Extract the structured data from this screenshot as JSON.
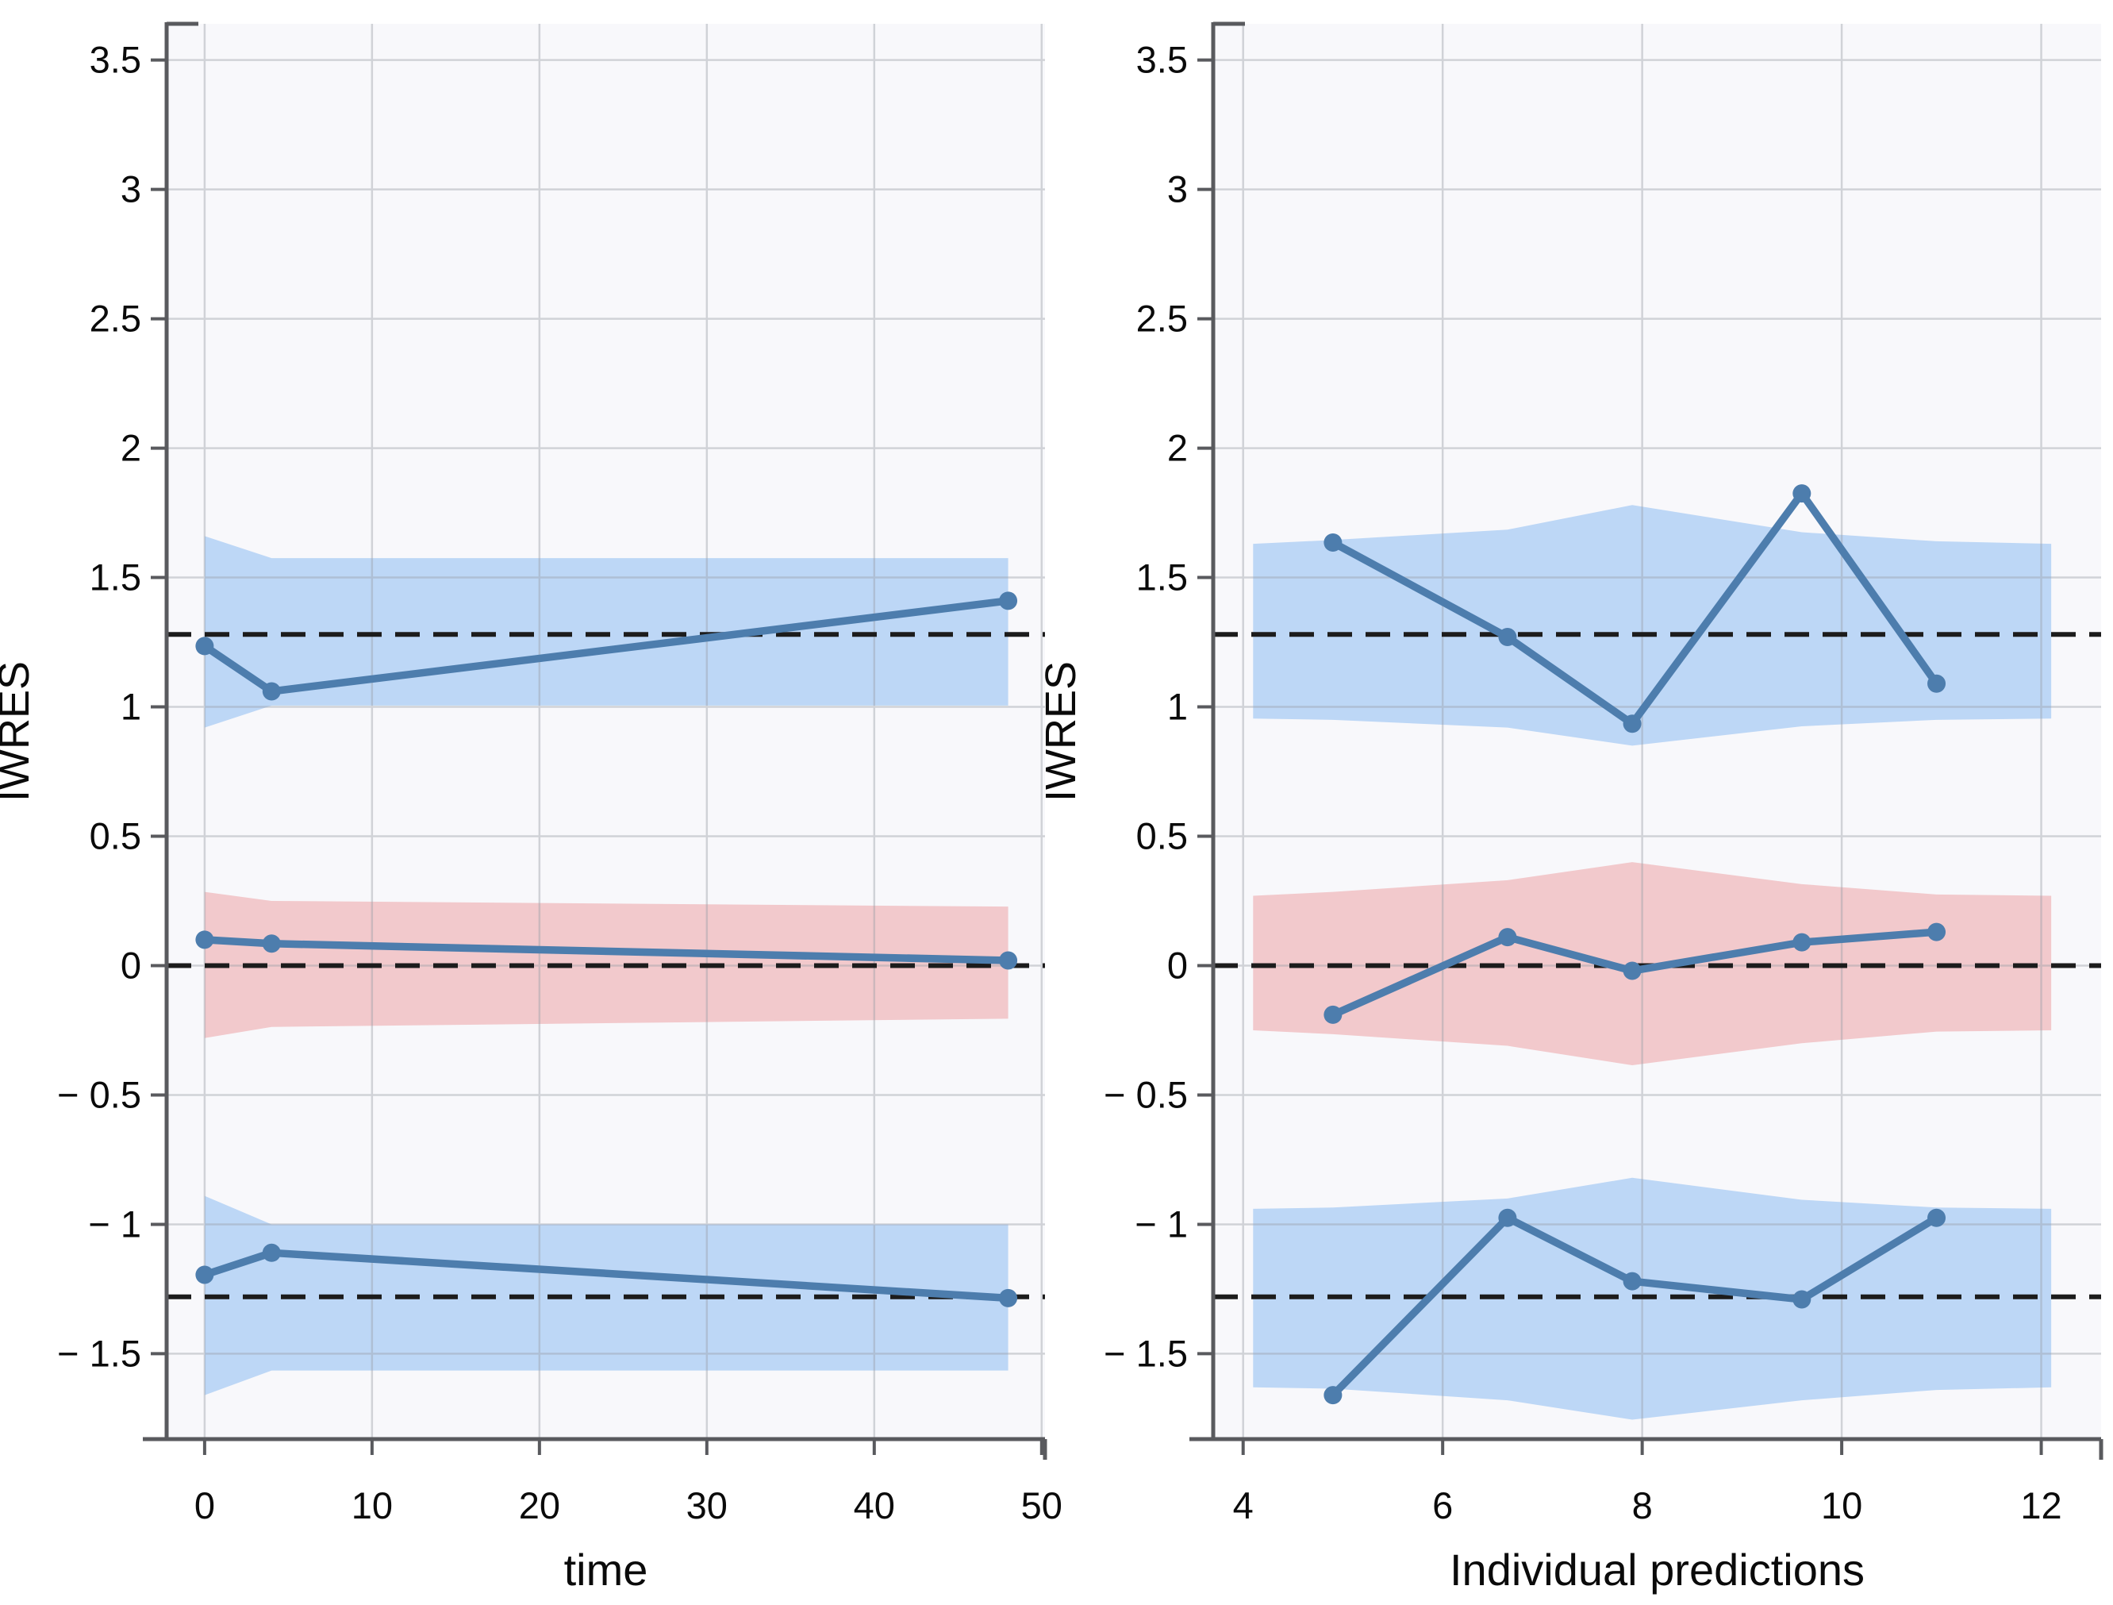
{
  "figure_name": "iwres-residual-scatter-vpc",
  "colors": {
    "band_blue": "#bdd7f6",
    "band_red": "#f2c9cc",
    "line": "#4d7dad",
    "dashed_line": "#1c1c1c",
    "grid": "#9aa0a8",
    "plot_background": "#f8f8fb",
    "axis": "#595a5e",
    "tick_text": "#0a0a0a"
  },
  "chart_data": [
    {
      "type": "line",
      "panel": "time",
      "title": "",
      "xlabel": "time",
      "ylabel": "IWRES",
      "xlim": [
        -2.27,
        50.2
      ],
      "ylim": [
        -1.83,
        3.64
      ],
      "xticks": [
        0,
        10,
        20,
        30,
        40,
        50
      ],
      "yticks": [
        3.5,
        3,
        2.5,
        2,
        1.5,
        1,
        0.5,
        0,
        -0.5,
        -1,
        -1.5
      ],
      "grid": "on",
      "legend": "none",
      "dashed_hlines": [
        1.28,
        0,
        -1.28
      ],
      "bands": [
        {
          "name": "outlier-band-upper",
          "color_key": "band_blue",
          "x": [
            0,
            4,
            48
          ],
          "upper": [
            1.66,
            1.575,
            1.575
          ],
          "lower": [
            0.92,
            1.005,
            1.005
          ]
        },
        {
          "name": "median-band",
          "color_key": "band_red",
          "x": [
            0,
            4,
            48
          ],
          "upper": [
            0.285,
            0.25,
            0.228
          ],
          "lower": [
            -0.28,
            -0.237,
            -0.205
          ]
        },
        {
          "name": "outlier-band-lower",
          "color_key": "band_blue",
          "x": [
            0,
            4,
            48
          ],
          "upper": [
            -0.89,
            -1.0,
            -1.0
          ],
          "lower": [
            -1.66,
            -1.565,
            -1.565
          ]
        }
      ],
      "series": [
        {
          "name": "upper-percentile-line",
          "points": [
            [
              0,
              1.235
            ],
            [
              4,
              1.06
            ],
            [
              48,
              1.41
            ]
          ]
        },
        {
          "name": "median-line",
          "points": [
            [
              0,
              0.1
            ],
            [
              4,
              0.085
            ],
            [
              48,
              0.02
            ]
          ]
        },
        {
          "name": "lower-percentile-line",
          "points": [
            [
              0,
              -1.195
            ],
            [
              4,
              -1.11
            ],
            [
              48,
              -1.285
            ]
          ]
        }
      ]
    },
    {
      "type": "line",
      "panel": "individual-predictions",
      "title": "",
      "xlabel": "Individual predictions",
      "ylabel": "IWRES",
      "xlim": [
        3.7,
        12.6
      ],
      "ylim": [
        -1.83,
        3.64
      ],
      "xticks": [
        4,
        6,
        8,
        10,
        12
      ],
      "yticks": [
        3.5,
        3,
        2.5,
        2,
        1.5,
        1,
        0.5,
        0,
        -0.5,
        -1,
        -1.5
      ],
      "grid": "on",
      "legend": "none",
      "dashed_hlines": [
        1.28,
        0,
        -1.28
      ],
      "bands": [
        {
          "name": "outlier-band-upper",
          "color_key": "band_blue",
          "x": [
            4.1,
            4.9,
            6.65,
            7.9,
            9.6,
            10.95,
            12.1
          ],
          "upper": [
            1.63,
            1.645,
            1.685,
            1.78,
            1.675,
            1.64,
            1.63
          ],
          "lower": [
            0.955,
            0.95,
            0.92,
            0.85,
            0.925,
            0.95,
            0.955
          ]
        },
        {
          "name": "median-band",
          "color_key": "band_red",
          "x": [
            4.1,
            4.9,
            6.65,
            7.9,
            9.6,
            10.95,
            12.1
          ],
          "upper": [
            0.27,
            0.285,
            0.33,
            0.4,
            0.315,
            0.275,
            0.27
          ],
          "lower": [
            -0.25,
            -0.265,
            -0.31,
            -0.385,
            -0.3,
            -0.255,
            -0.25
          ]
        },
        {
          "name": "outlier-band-lower",
          "color_key": "band_blue",
          "x": [
            4.1,
            4.9,
            6.65,
            7.9,
            9.6,
            10.95,
            12.1
          ],
          "upper": [
            -0.94,
            -0.935,
            -0.9,
            -0.82,
            -0.905,
            -0.935,
            -0.94
          ],
          "lower": [
            -1.63,
            -1.635,
            -1.68,
            -1.755,
            -1.68,
            -1.64,
            -1.63
          ]
        }
      ],
      "series": [
        {
          "name": "upper-percentile-line",
          "points": [
            [
              4.9,
              1.635
            ],
            [
              6.65,
              1.27
            ],
            [
              7.9,
              0.935
            ],
            [
              9.6,
              1.825
            ],
            [
              10.95,
              1.09
            ]
          ]
        },
        {
          "name": "median-line",
          "points": [
            [
              4.9,
              -0.19
            ],
            [
              6.65,
              0.11
            ],
            [
              7.9,
              -0.02
            ],
            [
              9.6,
              0.09
            ],
            [
              10.95,
              0.13
            ]
          ]
        },
        {
          "name": "lower-percentile-line",
          "points": [
            [
              4.9,
              -1.66
            ],
            [
              6.65,
              -0.975
            ],
            [
              7.9,
              -1.22
            ],
            [
              9.6,
              -1.29
            ],
            [
              10.95,
              -0.975
            ]
          ]
        }
      ]
    }
  ]
}
